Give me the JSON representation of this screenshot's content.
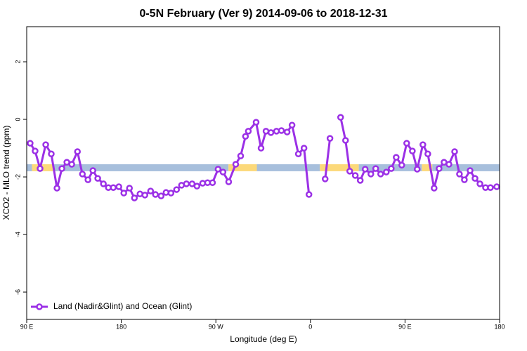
{
  "chart_data": {
    "type": "line",
    "title": "0-5N February (Ver 9)   2014-09-06 to 2018-12-31",
    "x_label": "Longitude (deg E)",
    "y_label": "XCO2 - MLO trend (ppm)",
    "xlim": [
      90,
      540
    ],
    "xticks": [
      {
        "value": 90,
        "label": "90 E"
      },
      180,
      {
        "value": 270,
        "label": "90 W"
      },
      {
        "value": 360,
        "label": "0"
      },
      {
        "value": 450,
        "label": "90 E"
      },
      {
        "value": 540,
        "label": "180"
      }
    ],
    "ylim": [
      -6.95,
      3.22
    ],
    "yticks": [
      -6,
      -4,
      -2,
      0,
      2
    ],
    "legend": "bottom-left",
    "band": {
      "value": -1.68,
      "segments": [
        {
          "from": 90,
          "to": 95,
          "color": "#a7bfdc"
        },
        {
          "from": 95,
          "to": 115,
          "color": "#fcd97a"
        },
        {
          "from": 115,
          "to": 282,
          "color": "#a7bfdc"
        },
        {
          "from": 282,
          "to": 309,
          "color": "#fcd97a"
        },
        {
          "from": 309,
          "to": 369,
          "color": "#a7bfdc"
        },
        {
          "from": 369,
          "to": 406,
          "color": "#fcd97a"
        },
        {
          "from": 406,
          "to": 466,
          "color": "#a7bfdc"
        },
        {
          "from": 466,
          "to": 476,
          "color": "#fcd97a"
        },
        {
          "from": 476,
          "to": 540,
          "color": "#a7bfdc"
        }
      ]
    },
    "x": [
      93.3,
      98,
      102.7,
      108.1,
      113.4,
      118.8,
      123.5,
      128.2,
      132.9,
      138.3,
      143,
      148.3,
      153,
      157.6,
      163,
      167.7,
      172.4,
      177.7,
      182.4,
      187.8,
      192.5,
      197.8,
      202.5,
      207.9,
      212.5,
      217.9,
      222.6,
      227.3,
      232.6,
      237.3,
      242,
      247.4,
      252,
      257.4,
      262.1,
      266.8,
      272.1,
      276.8,
      282.2,
      288.9,
      293.6,
      298.2,
      300.9,
      308.3,
      313,
      317.7,
      322.4,
      327.7,
      332.4,
      337.8,
      342.5,
      348.5,
      353.9,
      358.6,
      null,
      374,
      378.6,
      null,
      388.7,
      393.4,
      397.4,
      402.7,
      407.4,
      412.1,
      417.5,
      422.1,
      426.8,
      432.2,
      436.9,
      441.6,
      446.9,
      451.6,
      457,
      461.6,
      467,
      471.7,
      477.7,
      482.4,
      487.1,
      491.8,
      497.2,
      501.8,
      506.5,
      511.9,
      516.6,
      521.3,
      526.6,
      531.3,
      537.3
    ],
    "series": [
      {
        "name": "Land (Nadir&Glint) and Ocean (Glint)",
        "color": "#9b30e6",
        "values": [
          -0.83,
          -1.1,
          -1.71,
          -0.88,
          -1.2,
          -2.39,
          -1.71,
          -1.49,
          -1.56,
          -1.12,
          -1.9,
          -2.1,
          -1.78,
          -2.05,
          -2.24,
          -2.37,
          -2.37,
          -2.34,
          -2.56,
          -2.39,
          -2.73,
          -2.59,
          -2.63,
          -2.49,
          -2.61,
          -2.66,
          -2.54,
          -2.56,
          -2.44,
          -2.29,
          -2.24,
          -2.24,
          -2.32,
          -2.22,
          -2.2,
          -2.2,
          -1.73,
          -1.83,
          -2.17,
          -1.56,
          -1.27,
          -0.59,
          -0.41,
          -0.1,
          -1,
          -0.41,
          -0.46,
          -0.41,
          -0.39,
          -0.44,
          -0.2,
          -1.2,
          -1,
          -2.61,
          null,
          -2.07,
          -0.66,
          null,
          0.07,
          -0.73,
          -1.8,
          -1.95,
          -2.12,
          -1.73,
          -1.9,
          -1.71,
          -1.9,
          -1.83,
          -1.71,
          -1.32,
          -1.59,
          -0.83,
          -1.1,
          -1.73,
          -0.88,
          -1.2,
          -2.39,
          -1.71,
          -1.49,
          -1.56,
          -1.12,
          -1.9,
          -2.1,
          -1.78,
          -2.05,
          -2.24,
          -2.37,
          -2.37,
          -2.34
        ]
      }
    ]
  }
}
